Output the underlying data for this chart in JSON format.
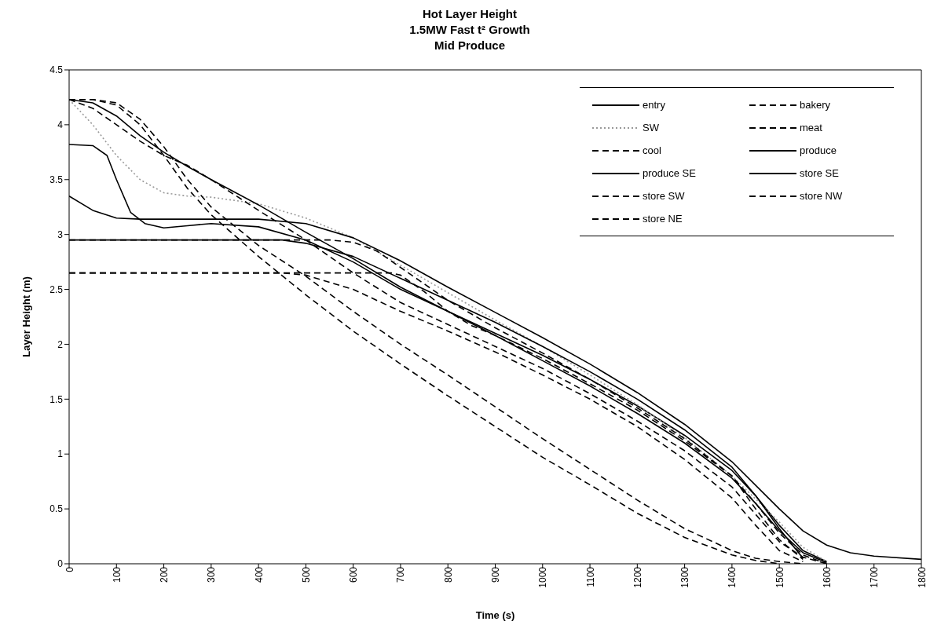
{
  "chart_data": {
    "type": "line",
    "title": "Hot Layer Height\n1.5MW Fast t² Growth\nMid Produce",
    "xlabel": "Time (s)",
    "ylabel": "Layer Height (m)",
    "xlim": [
      0,
      1800
    ],
    "xticks": [
      0,
      100,
      200,
      300,
      400,
      500,
      600,
      700,
      800,
      900,
      1000,
      1100,
      1200,
      1300,
      1400,
      1500,
      1600,
      1700,
      1800
    ],
    "ylim": [
      0,
      4.5
    ],
    "yticks": [
      0,
      0.5,
      1,
      1.5,
      2,
      2.5,
      3,
      3.5,
      4,
      4.5
    ],
    "grid": false,
    "legend": "top right",
    "marker": "none",
    "series": [
      {
        "name": "entry",
        "color": "#000000",
        "line_style": "solid",
        "x": [
          0,
          50,
          80,
          100,
          130,
          160,
          200,
          250,
          300,
          400,
          500,
          600,
          700,
          800,
          900,
          1000,
          1100,
          1200,
          1300,
          1400,
          1450,
          1500,
          1550,
          1600
        ],
        "values": [
          3.82,
          3.81,
          3.72,
          3.5,
          3.2,
          3.1,
          3.06,
          3.08,
          3.1,
          3.07,
          2.95,
          2.75,
          2.5,
          2.3,
          2.1,
          1.9,
          1.68,
          1.44,
          1.17,
          0.85,
          0.62,
          0.35,
          0.12,
          0.02
        ]
      },
      {
        "name": "bakery",
        "color": "#000000",
        "line_style": "dashed",
        "x": [
          0,
          50,
          100,
          150,
          200,
          250,
          300,
          400,
          500,
          600,
          700,
          800,
          900,
          1000,
          1100,
          1200,
          1300,
          1400,
          1450,
          1500
        ],
        "values": [
          4.23,
          4.23,
          4.18,
          4.0,
          3.72,
          3.42,
          3.18,
          2.8,
          2.45,
          2.12,
          1.82,
          1.53,
          1.25,
          0.97,
          0.72,
          0.46,
          0.24,
          0.08,
          0.03,
          0
        ]
      },
      {
        "name": "SW",
        "color": "#999999",
        "line_style": "dotted",
        "x": [
          0,
          50,
          100,
          150,
          200,
          250,
          300,
          400,
          500,
          600,
          700,
          800,
          900,
          1000,
          1100,
          1200,
          1300,
          1400,
          1500,
          1550,
          1600
        ],
        "values": [
          4.23,
          4.0,
          3.72,
          3.5,
          3.38,
          3.35,
          3.34,
          3.28,
          3.15,
          2.97,
          2.72,
          2.47,
          2.22,
          1.98,
          1.72,
          1.45,
          1.15,
          0.8,
          0.38,
          0.15,
          0.02
        ]
      },
      {
        "name": "meat",
        "color": "#000000",
        "line_style": "dashed",
        "x": [
          0,
          50,
          100,
          150,
          200,
          250,
          300,
          400,
          500,
          600,
          700,
          800,
          900,
          1000,
          1100,
          1200,
          1300,
          1400,
          1450,
          1500,
          1550
        ],
        "values": [
          4.23,
          4.23,
          4.2,
          4.05,
          3.8,
          3.5,
          3.25,
          2.9,
          2.62,
          2.3,
          2.0,
          1.72,
          1.43,
          1.14,
          0.86,
          0.58,
          0.32,
          0.12,
          0.05,
          0.02,
          0
        ]
      },
      {
        "name": "cool",
        "color": "#000000",
        "line_style": "dashed",
        "x": [
          0,
          50,
          100,
          150,
          200,
          250,
          300,
          400,
          500,
          600,
          700,
          800,
          900,
          1000,
          1100,
          1200,
          1300,
          1400,
          1450,
          1500,
          1550,
          1600
        ],
        "values": [
          4.23,
          4.15,
          4.0,
          3.85,
          3.72,
          3.63,
          3.5,
          3.22,
          2.95,
          2.65,
          2.38,
          2.18,
          1.98,
          1.78,
          1.55,
          1.3,
          1.03,
          0.7,
          0.45,
          0.2,
          0.06,
          0
        ]
      },
      {
        "name": "produce",
        "color": "#000000",
        "line_style": "solid",
        "x": [
          0,
          50,
          100,
          150,
          300,
          400,
          500,
          600,
          700,
          800,
          900,
          1000,
          1100,
          1200,
          1300,
          1400,
          1500,
          1550,
          1600,
          1650,
          1700,
          1800
        ],
        "values": [
          3.35,
          3.22,
          3.15,
          3.14,
          3.14,
          3.14,
          3.1,
          2.97,
          2.76,
          2.52,
          2.29,
          2.06,
          1.82,
          1.56,
          1.27,
          0.93,
          0.5,
          0.3,
          0.17,
          0.1,
          0.07,
          0.04
        ]
      },
      {
        "name": "produce SE",
        "color": "#000000",
        "line_style": "solid",
        "x": [
          0,
          50,
          100,
          150,
          200,
          250,
          300,
          400,
          500,
          600,
          700,
          800,
          900,
          1000,
          1100,
          1200,
          1300,
          1400,
          1450,
          1500,
          1550,
          1600
        ],
        "values": [
          4.23,
          4.2,
          4.08,
          3.9,
          3.75,
          3.62,
          3.5,
          3.27,
          3.02,
          2.78,
          2.52,
          2.3,
          2.08,
          1.85,
          1.62,
          1.37,
          1.1,
          0.78,
          0.55,
          0.3,
          0.1,
          0.01
        ]
      },
      {
        "name": "store SE",
        "color": "#000000",
        "line_style": "solid",
        "x": [
          0,
          450,
          500,
          600,
          700,
          800,
          900,
          1000,
          1100,
          1200,
          1300,
          1400,
          1450,
          1500,
          1550
        ],
        "values": [
          2.95,
          2.95,
          2.92,
          2.8,
          2.6,
          2.4,
          2.2,
          1.98,
          1.75,
          1.5,
          1.22,
          0.88,
          0.62,
          0.32,
          0.05
        ]
      },
      {
        "name": "store SW",
        "color": "#000000",
        "line_style": "dashed",
        "x": [
          0,
          550,
          600,
          650,
          700,
          750,
          800,
          900,
          1000,
          1100,
          1200,
          1300,
          1400,
          1450,
          1500,
          1550,
          1600
        ],
        "values": [
          2.95,
          2.95,
          2.93,
          2.85,
          2.7,
          2.55,
          2.4,
          2.15,
          1.92,
          1.68,
          1.42,
          1.14,
          0.8,
          0.55,
          0.28,
          0.08,
          0
        ]
      },
      {
        "name": "store NW",
        "color": "#000000",
        "line_style": "dashed",
        "x": [
          0,
          680,
          700,
          750,
          800,
          850,
          900,
          1000,
          1100,
          1200,
          1300,
          1400,
          1450,
          1500,
          1550
        ],
        "values": [
          2.65,
          2.65,
          2.63,
          2.48,
          2.3,
          2.17,
          2.08,
          1.87,
          1.64,
          1.4,
          1.12,
          0.8,
          0.5,
          0.22,
          0.04
        ]
      },
      {
        "name": "store NE",
        "color": "#000000",
        "line_style": "dashed",
        "x": [
          0,
          450,
          500,
          600,
          700,
          800,
          900,
          1000,
          1100,
          1200,
          1300,
          1400,
          1450,
          1500,
          1550
        ],
        "values": [
          2.65,
          2.65,
          2.63,
          2.5,
          2.3,
          2.12,
          1.93,
          1.72,
          1.5,
          1.25,
          0.95,
          0.6,
          0.35,
          0.12,
          0.02
        ]
      }
    ]
  }
}
